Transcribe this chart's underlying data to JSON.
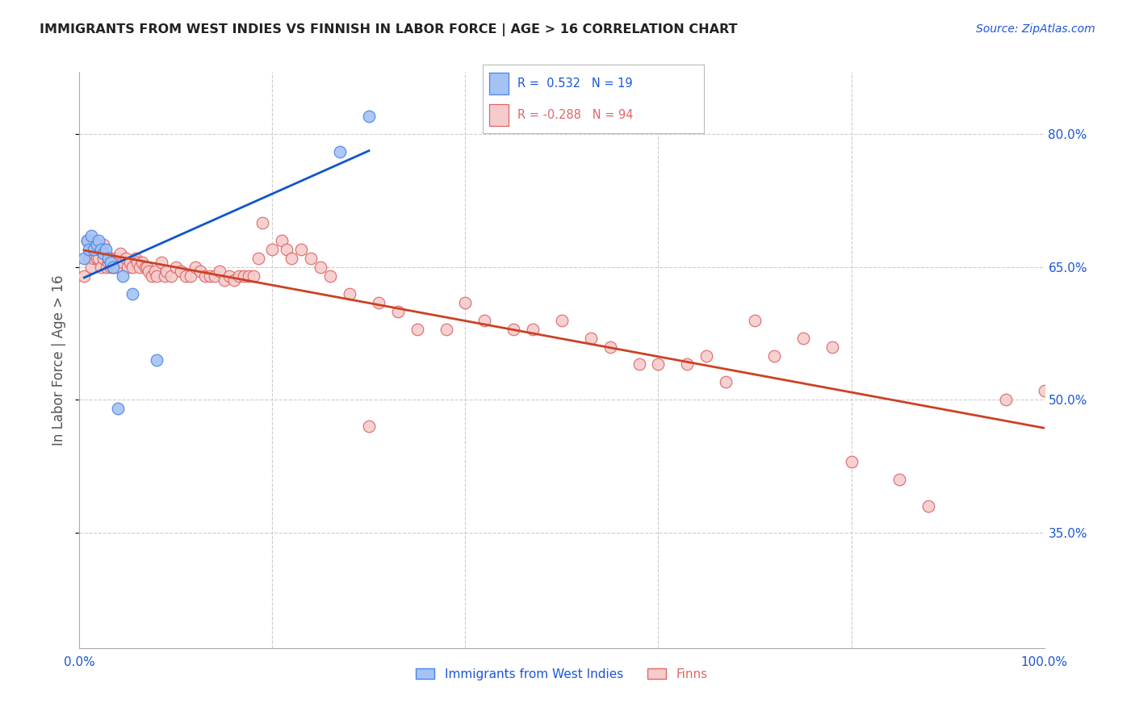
{
  "title": "IMMIGRANTS FROM WEST INDIES VS FINNISH IN LABOR FORCE | AGE > 16 CORRELATION CHART",
  "source": "Source: ZipAtlas.com",
  "ylabel": "In Labor Force | Age > 16",
  "r_west_indies": 0.532,
  "n_west_indies": 19,
  "r_finns": -0.288,
  "n_finns": 94,
  "xlim": [
    0.0,
    1.0
  ],
  "ylim": [
    0.22,
    0.87
  ],
  "yticks": [
    0.35,
    0.5,
    0.65,
    0.8
  ],
  "ytick_labels": [
    "35.0%",
    "50.0%",
    "65.0%",
    "80.0%"
  ],
  "xticks": [
    0.0,
    0.2,
    0.4,
    0.6,
    0.8,
    1.0
  ],
  "xtick_labels": [
    "0.0%",
    "",
    "",
    "",
    "",
    "100.0%"
  ],
  "west_indies_color": "#a4c2f4",
  "finns_color": "#f4cccc",
  "west_indies_edge": "#4a86e8",
  "finns_edge": "#e06666",
  "trend_blue": "#1155cc",
  "trend_pink": "#cc4125",
  "background": "#ffffff",
  "grid_color": "#cccccc",
  "west_indies_x": [
    0.005,
    0.008,
    0.01,
    0.012,
    0.015,
    0.018,
    0.02,
    0.022,
    0.025,
    0.027,
    0.03,
    0.032,
    0.035,
    0.04,
    0.045,
    0.055,
    0.08,
    0.27,
    0.3
  ],
  "west_indies_y": [
    0.66,
    0.68,
    0.67,
    0.685,
    0.67,
    0.675,
    0.68,
    0.67,
    0.665,
    0.67,
    0.66,
    0.655,
    0.65,
    0.49,
    0.64,
    0.62,
    0.545,
    0.78,
    0.82
  ],
  "finns_x": [
    0.005,
    0.008,
    0.01,
    0.012,
    0.015,
    0.015,
    0.018,
    0.02,
    0.02,
    0.022,
    0.025,
    0.025,
    0.028,
    0.03,
    0.03,
    0.032,
    0.035,
    0.035,
    0.038,
    0.04,
    0.042,
    0.045,
    0.048,
    0.05,
    0.052,
    0.055,
    0.058,
    0.06,
    0.062,
    0.065,
    0.068,
    0.07,
    0.072,
    0.075,
    0.078,
    0.08,
    0.085,
    0.088,
    0.09,
    0.095,
    0.1,
    0.105,
    0.11,
    0.115,
    0.12,
    0.125,
    0.13,
    0.135,
    0.14,
    0.145,
    0.15,
    0.155,
    0.16,
    0.165,
    0.17,
    0.175,
    0.18,
    0.185,
    0.19,
    0.2,
    0.21,
    0.215,
    0.22,
    0.23,
    0.24,
    0.25,
    0.26,
    0.28,
    0.3,
    0.31,
    0.33,
    0.35,
    0.38,
    0.4,
    0.42,
    0.45,
    0.47,
    0.5,
    0.53,
    0.55,
    0.58,
    0.6,
    0.63,
    0.65,
    0.67,
    0.7,
    0.72,
    0.75,
    0.78,
    0.8,
    0.85,
    0.88,
    0.96,
    1.0
  ],
  "finns_y": [
    0.64,
    0.68,
    0.66,
    0.65,
    0.66,
    0.68,
    0.66,
    0.66,
    0.67,
    0.65,
    0.66,
    0.675,
    0.65,
    0.655,
    0.66,
    0.65,
    0.65,
    0.66,
    0.65,
    0.66,
    0.665,
    0.655,
    0.66,
    0.65,
    0.655,
    0.65,
    0.66,
    0.655,
    0.65,
    0.655,
    0.65,
    0.65,
    0.645,
    0.64,
    0.645,
    0.64,
    0.655,
    0.64,
    0.645,
    0.64,
    0.65,
    0.645,
    0.64,
    0.64,
    0.65,
    0.645,
    0.64,
    0.64,
    0.64,
    0.645,
    0.635,
    0.64,
    0.635,
    0.64,
    0.64,
    0.64,
    0.64,
    0.66,
    0.7,
    0.67,
    0.68,
    0.67,
    0.66,
    0.67,
    0.66,
    0.65,
    0.64,
    0.62,
    0.47,
    0.61,
    0.6,
    0.58,
    0.58,
    0.61,
    0.59,
    0.58,
    0.58,
    0.59,
    0.57,
    0.56,
    0.54,
    0.54,
    0.54,
    0.55,
    0.52,
    0.59,
    0.55,
    0.57,
    0.56,
    0.43,
    0.41,
    0.38,
    0.5,
    0.51
  ]
}
